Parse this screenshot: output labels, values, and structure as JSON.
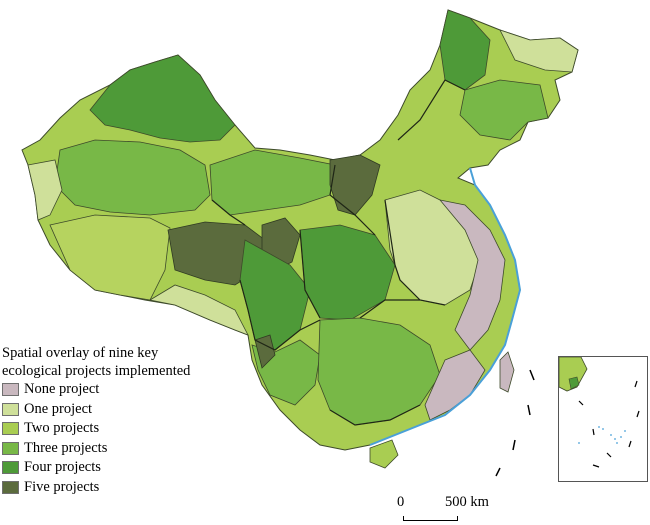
{
  "legend": {
    "title_line1": "Spatial overlay of nine key",
    "title_line2": "ecological projects implemented",
    "items": [
      {
        "label": "None project",
        "color": "#c9b8bf"
      },
      {
        "label": "One project",
        "color": "#cfe09a"
      },
      {
        "label": "Two projects",
        "color": "#a9cd52"
      },
      {
        "label": "Three projects",
        "color": "#78b847"
      },
      {
        "label": "Four projects",
        "color": "#4e9a38"
      },
      {
        "label": "Five projects",
        "color": "#5b6b3d"
      }
    ]
  },
  "scale_bar": {
    "start_label": "0",
    "end_label": "500 km"
  },
  "colors": {
    "boundary": "#2f3a22",
    "sea_outline": "#4aa0d8",
    "none": "#c9b8bf",
    "one": "#cfe09a",
    "two": "#a9cd52",
    "three": "#78b847",
    "four": "#4e9a38",
    "five": "#5b6b3d"
  }
}
